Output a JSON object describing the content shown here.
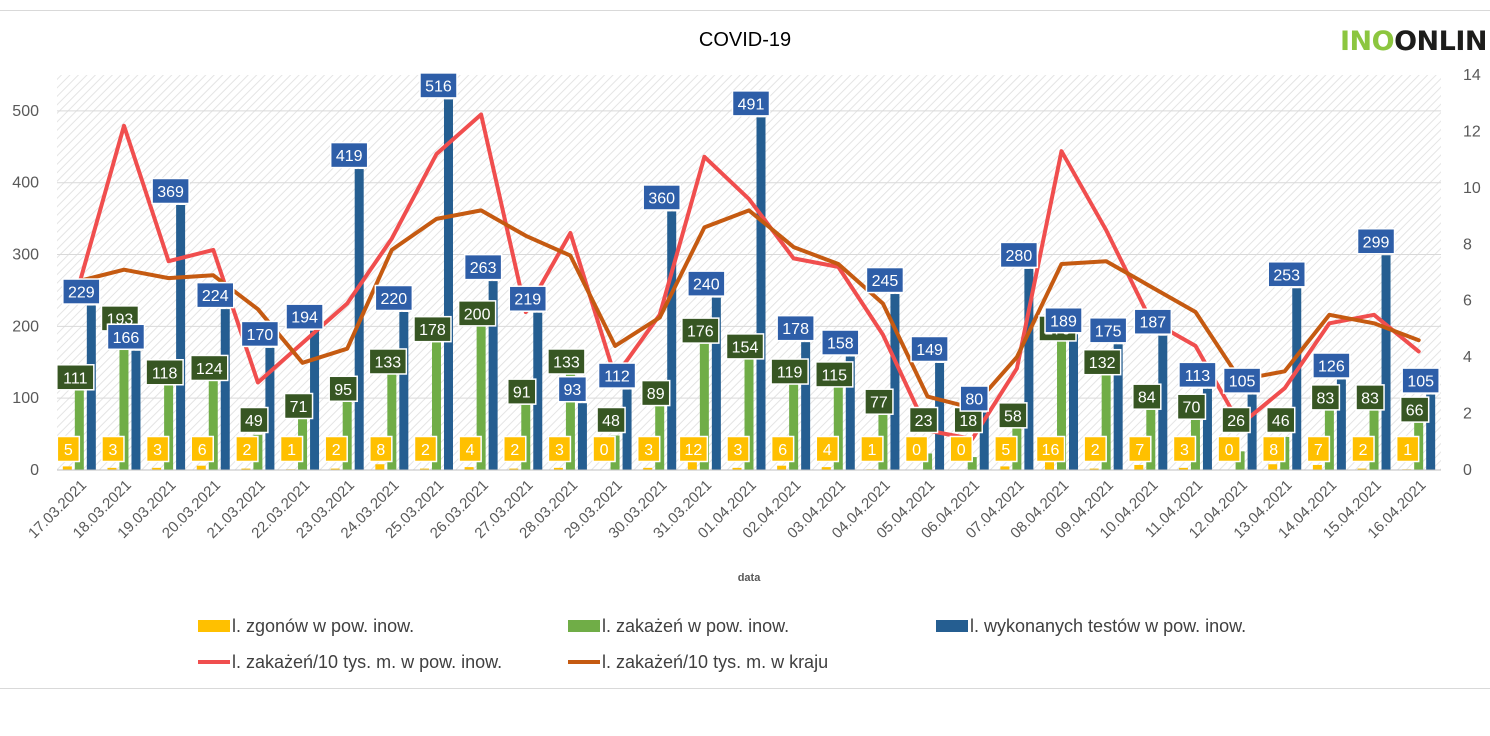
{
  "logo": {
    "part1": "INO",
    "part2": "ONLIN"
  },
  "chart_data": {
    "type": "bar",
    "title": "COVID-19",
    "xlabel": "data",
    "ylabel": "",
    "ylim": [
      0,
      550
    ],
    "y2lim": [
      0,
      14
    ],
    "yticks": [
      "0",
      "100",
      "200",
      "300",
      "400",
      "500"
    ],
    "y2ticks": [
      "0",
      "2",
      "4",
      "6",
      "8",
      "10",
      "12",
      "14"
    ],
    "categories": [
      "17.03.2021",
      "18.03.2021",
      "19.03.2021",
      "20.03.2021",
      "21.03.2021",
      "22.03.2021",
      "23.03.2021",
      "24.03.2021",
      "25.03.2021",
      "26.03.2021",
      "27.03.2021",
      "28.03.2021",
      "29.03.2021",
      "30.03.2021",
      "31.03.2021",
      "01.04.2021",
      "02.04.2021",
      "03.04.2021",
      "04.04.2021",
      "05.04.2021",
      "06.04.2021",
      "07.04.2021",
      "08.04.2021",
      "09.04.2021",
      "10.04.2021",
      "11.04.2021",
      "12.04.2021",
      "13.04.2021",
      "14.04.2021",
      "15.04.2021",
      "16.04.2021"
    ],
    "series": [
      {
        "name": "l. zgonów w pow. inow.",
        "kind": "bar",
        "axis": "left",
        "color": "#ffc000",
        "label_bg": "#ffc000",
        "label_fg": "#ffffff",
        "values": [
          5,
          3,
          3,
          6,
          2,
          1,
          2,
          8,
          2,
          4,
          2,
          3,
          0,
          3,
          12,
          3,
          6,
          4,
          1,
          0,
          0,
          5,
          16,
          2,
          7,
          3,
          0,
          8,
          7,
          2,
          1
        ]
      },
      {
        "name": "l. zakażeń w pow. inow.",
        "kind": "bar",
        "axis": "left",
        "color": "#70ad47",
        "label_bg": "#375623",
        "label_fg": "#ffffff",
        "values": [
          111,
          193,
          118,
          124,
          49,
          71,
          95,
          133,
          178,
          200,
          91,
          133,
          48,
          89,
          176,
          154,
          119,
          115,
          77,
          23,
          18,
          58,
          179,
          132,
          84,
          70,
          26,
          46,
          83,
          83,
          66
        ]
      },
      {
        "name": "l. wykonanych testów w pow. inow.",
        "kind": "bar",
        "axis": "left",
        "color": "#255e91",
        "label_bg": "#2e5ea8",
        "label_fg": "#ffffff",
        "values": [
          229,
          166,
          369,
          224,
          170,
          194,
          419,
          220,
          516,
          263,
          219,
          93,
          112,
          360,
          240,
          491,
          178,
          158,
          245,
          149,
          80,
          280,
          189,
          175,
          187,
          113,
          105,
          253,
          126,
          299,
          105
        ]
      },
      {
        "name": "l. zakażeń/10 tys. m. w pow. inow.",
        "kind": "line",
        "axis": "right",
        "color": "#f04e4e",
        "values": [
          6.6,
          12.2,
          7.4,
          7.8,
          3.1,
          4.5,
          5.9,
          8.2,
          11.2,
          12.6,
          5.6,
          8.4,
          3.3,
          5.5,
          11.1,
          9.6,
          7.5,
          7.2,
          4.8,
          1.4,
          1.1,
          3.6,
          11.3,
          8.5,
          5.3,
          4.4,
          1.6,
          2.9,
          5.2,
          5.5,
          4.2
        ]
      },
      {
        "name": "l. zakażeń/10 tys. m. w kraju",
        "kind": "line",
        "axis": "right",
        "color": "#c55a11",
        "values": [
          6.7,
          7.1,
          6.8,
          6.9,
          5.7,
          3.8,
          4.3,
          7.8,
          8.9,
          9.2,
          8.3,
          7.6,
          4.4,
          5.4,
          8.6,
          9.2,
          7.9,
          7.3,
          5.9,
          2.6,
          2.2,
          4.0,
          7.3,
          7.4,
          6.5,
          5.6,
          3.2,
          3.5,
          5.5,
          5.2,
          4.6
        ]
      }
    ],
    "legend": {
      "position": "bottom"
    }
  }
}
